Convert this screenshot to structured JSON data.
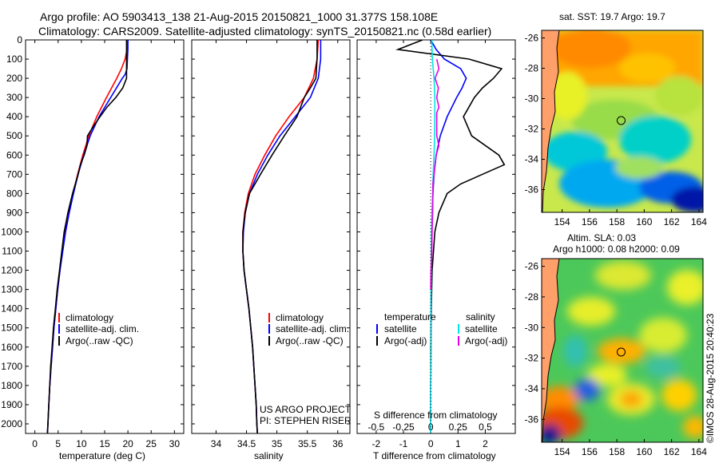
{
  "header": {
    "line1": "Argo profile: AO 5903413_138 21-Aug-2015 20150821_1000 31.377S 158.108E",
    "line2": "Climatology: CARS2009. Satellite-adjusted climatology: synTS_20150821.nc (0.58d earlier)"
  },
  "panel_temp": {
    "xlabel": "temperature (deg C)",
    "legend": [
      "climatology",
      "satellite-adj. clim.",
      "Argo(..raw -QC)"
    ]
  },
  "panel_sal": {
    "xlabel": "salinity",
    "legend": [
      "climatology",
      "satellite-adj. clim.",
      "Argo(..raw -QC)"
    ],
    "credit1": "US ARGO PROJECT",
    "credit2": "PI: STEPHEN RISER"
  },
  "panel_diff": {
    "xlabel": "T difference from climatology",
    "xlabel_top": "S difference from climatology",
    "legend_temp_title": "temperature",
    "legend_sal_title": "salinity",
    "legend_temp": [
      "satellite",
      "Argo(-adj)"
    ],
    "legend_sal": [
      "satellite",
      "Argo(-adj)"
    ]
  },
  "map_sst": {
    "title": "sat. SST: 19.7  Argo: 19.7"
  },
  "map_sla": {
    "title1": "Altim. SLA: 0.03",
    "title2": "Argo h1000: 0.08 h2000: 0.09"
  },
  "imos_credit": "©IMOS 28-Aug-2015 20:40:23",
  "colors": {
    "climatology": "#ff0000",
    "satellite": "#0000ff",
    "argo": "#000000",
    "sal_satellite": "#00e5e5",
    "sal_argo": "#e600e6"
  },
  "chart_data": [
    {
      "type": "line",
      "name": "temperature profile",
      "xlabel": "temperature (deg C)",
      "ylabel": "",
      "xlim": [
        -2,
        32
      ],
      "ylim": [
        2050,
        0
      ],
      "xticks": [
        0,
        5,
        10,
        15,
        20,
        25,
        30
      ],
      "yticks": [
        0,
        100,
        200,
        300,
        400,
        500,
        600,
        700,
        800,
        900,
        1000,
        1100,
        1200,
        1300,
        1400,
        1500,
        1600,
        1700,
        1800,
        1900,
        2000
      ],
      "series": [
        {
          "name": "climatology",
          "color": "#ff0000",
          "depth": [
            0,
            50,
            100,
            150,
            200,
            300,
            400,
            500,
            600,
            700,
            800,
            900,
            1000,
            1100,
            1200,
            1300,
            1400,
            1500,
            1600,
            1700,
            1800,
            1900,
            2000,
            2050
          ],
          "values": [
            20.0,
            19.8,
            19.4,
            18.6,
            17.6,
            15.4,
            13.3,
            11.6,
            10.3,
            9.2,
            8.2,
            7.3,
            6.5,
            5.9,
            5.4,
            4.9,
            4.5,
            4.1,
            3.8,
            3.5,
            3.2,
            3.0,
            2.8,
            2.7
          ]
        },
        {
          "name": "satellite-adj. clim.",
          "color": "#0000ff",
          "depth": [
            0,
            50,
            100,
            150,
            180,
            200,
            300,
            400,
            500,
            600,
            700,
            800,
            900,
            1000,
            1100,
            1200,
            1300,
            1400,
            1500,
            1600,
            1700,
            1800,
            1900,
            2000,
            2050
          ],
          "values": [
            20.0,
            20.0,
            19.9,
            19.8,
            19.4,
            18.8,
            16.3,
            13.8,
            11.9,
            10.5,
            9.3,
            8.3,
            7.4,
            6.6,
            6.0,
            5.4,
            4.9,
            4.5,
            4.1,
            3.8,
            3.5,
            3.2,
            3.0,
            2.8,
            2.7
          ]
        },
        {
          "name": "Argo(..raw -QC)",
          "color": "#000000",
          "depth": [
            0,
            50,
            100,
            150,
            200,
            250,
            300,
            350,
            400,
            450,
            500,
            550,
            600,
            650,
            700,
            750,
            800,
            850,
            900,
            950,
            1000,
            1100,
            1200,
            1300,
            1400,
            1500,
            1600,
            1700,
            1800,
            1900,
            2000,
            2050
          ],
          "values": [
            19.7,
            19.7,
            19.7,
            19.7,
            19.7,
            18.9,
            17.4,
            15.5,
            14.0,
            12.6,
            11.3,
            11.2,
            10.6,
            9.8,
            9.3,
            8.7,
            8.1,
            7.6,
            7.1,
            6.7,
            6.3,
            5.8,
            5.3,
            4.8,
            4.4,
            4.0,
            3.7,
            3.4,
            3.2,
            3.0,
            2.8,
            2.7
          ]
        }
      ]
    },
    {
      "type": "line",
      "name": "salinity profile",
      "xlabel": "salinity",
      "xlim": [
        33.6,
        36.2
      ],
      "ylim": [
        2050,
        0
      ],
      "xticks": [
        34,
        34.5,
        35,
        35.5,
        36
      ],
      "series": [
        {
          "name": "climatology",
          "color": "#ff0000",
          "depth": [
            0,
            100,
            200,
            300,
            400,
            500,
            600,
            700,
            800,
            900,
            1000,
            1100,
            1200,
            1300,
            1400,
            1500,
            1600,
            1700,
            1800,
            1900,
            2000,
            2050
          ],
          "values": [
            35.68,
            35.66,
            35.6,
            35.45,
            35.2,
            34.98,
            34.8,
            34.64,
            34.53,
            34.47,
            34.44,
            34.44,
            34.46,
            34.5,
            34.54,
            34.57,
            34.6,
            34.62,
            34.64,
            34.66,
            34.67,
            34.68
          ]
        },
        {
          "name": "satellite-adj. clim.",
          "color": "#0000ff",
          "depth": [
            0,
            100,
            200,
            300,
            400,
            500,
            600,
            700,
            800,
            900,
            1000,
            1100,
            1200,
            1300,
            1400,
            1500,
            1600,
            1700,
            1800,
            1900,
            2000,
            2050
          ],
          "values": [
            35.72,
            35.72,
            35.68,
            35.55,
            35.3,
            35.05,
            34.85,
            34.68,
            34.55,
            34.48,
            34.45,
            34.44,
            34.46,
            34.5,
            34.54,
            34.57,
            34.6,
            34.62,
            34.64,
            34.66,
            34.67,
            34.68
          ]
        },
        {
          "name": "Argo(..raw -QC)",
          "color": "#000000",
          "depth": [
            0,
            50,
            100,
            150,
            200,
            250,
            300,
            400,
            500,
            600,
            700,
            800,
            900,
            1000,
            1100,
            1200,
            1300,
            1400,
            1500,
            1600,
            1700,
            1800,
            1900,
            2000,
            2050
          ],
          "values": [
            35.66,
            35.66,
            35.66,
            35.65,
            35.64,
            35.55,
            35.45,
            35.33,
            35.12,
            34.92,
            34.73,
            34.55,
            34.48,
            34.44,
            34.44,
            34.46,
            34.5,
            34.54,
            34.57,
            34.6,
            34.62,
            34.64,
            34.66,
            34.67,
            34.68
          ]
        }
      ]
    },
    {
      "type": "line",
      "name": "difference from climatology",
      "xlabel": "T difference from climatology",
      "xlabel_top": "S difference from climatology",
      "xlim": [
        -2.7,
        3.1
      ],
      "ylim": [
        2050,
        0
      ],
      "xticks": [
        -2,
        -1,
        0,
        1,
        2
      ],
      "xticks_top": [
        -0.5,
        -0.25,
        0,
        0.25,
        0.5
      ],
      "series": [
        {
          "name": "temperature satellite",
          "color": "#0000ff",
          "depth": [
            0,
            50,
            100,
            150,
            200,
            250,
            300,
            400,
            500,
            600,
            700,
            800,
            900,
            1000,
            1200,
            1400,
            1600,
            1800,
            2000,
            2050
          ],
          "values": [
            0.0,
            0.2,
            0.5,
            1.1,
            1.3,
            1.15,
            0.95,
            0.6,
            0.35,
            0.2,
            0.12,
            0.08,
            0.05,
            0.03,
            0.02,
            0.01,
            0.01,
            0.0,
            0.0,
            0.0
          ]
        },
        {
          "name": "temperature Argo(-adj)",
          "color": "#000000",
          "depth": [
            0,
            50,
            100,
            150,
            200,
            250,
            300,
            400,
            500,
            600,
            650,
            700,
            750,
            800,
            850,
            900,
            1000,
            1200,
            1400,
            1600,
            1800,
            2000,
            2050
          ],
          "values": [
            -0.3,
            -1.2,
            1.4,
            2.6,
            2.3,
            1.9,
            1.6,
            1.2,
            1.5,
            2.5,
            2.7,
            1.9,
            1.1,
            0.6,
            0.45,
            0.3,
            0.15,
            0.05,
            0.02,
            0.0,
            0.0,
            0.0,
            0.0
          ]
        },
        {
          "name": "salinity satellite",
          "color": "#00e5e5",
          "depth": [
            0,
            100,
            200,
            300,
            400,
            500,
            600,
            700,
            800,
            900,
            1000,
            1200,
            1400,
            1600,
            1800,
            2000,
            2050
          ],
          "values": [
            0.04,
            0.06,
            0.12,
            0.15,
            0.15,
            0.14,
            0.12,
            0.09,
            0.07,
            0.05,
            0.03,
            0.02,
            0.01,
            0.01,
            0.0,
            0.0,
            0.0
          ]
        },
        {
          "name": "salinity Argo(-adj)",
          "color": "#e600e6",
          "depth": [
            100,
            150,
            200,
            250,
            300,
            350,
            380,
            500,
            550,
            600,
            650,
            700,
            750,
            800,
            900,
            1000,
            1100,
            1200,
            1300
          ],
          "values": [
            0.22,
            0.3,
            0.16,
            0.28,
            0.22,
            0.3,
            0.22,
            0.22,
            0.3,
            0.2,
            0.16,
            0.12,
            0.08,
            0.08,
            0.07,
            0.05,
            0.04,
            0.01,
            0.0
          ]
        }
      ]
    },
    {
      "type": "heatmap",
      "name": "satellite SST map",
      "title": "sat. SST: 19.7  Argo: 19.7",
      "xlim": [
        152.5,
        164.3
      ],
      "ylim": [
        -37.5,
        -25.5
      ],
      "xticks": [
        154,
        156,
        158,
        160,
        162,
        164
      ],
      "yticks": [
        -26,
        -28,
        -30,
        -32,
        -34,
        -36
      ],
      "argo_position": {
        "lon": 158.108,
        "lat": -31.377
      }
    },
    {
      "type": "heatmap",
      "name": "altimetry SLA map",
      "title": "Altim. SLA: 0.03",
      "xlim": [
        152.5,
        164.3
      ],
      "ylim": [
        -37.5,
        -25.5
      ],
      "xticks": [
        154,
        156,
        158,
        160,
        162,
        164
      ],
      "yticks": [
        -26,
        -28,
        -30,
        -32,
        -34,
        -36
      ],
      "argo_position": {
        "lon": 158.108,
        "lat": -31.377
      }
    }
  ]
}
